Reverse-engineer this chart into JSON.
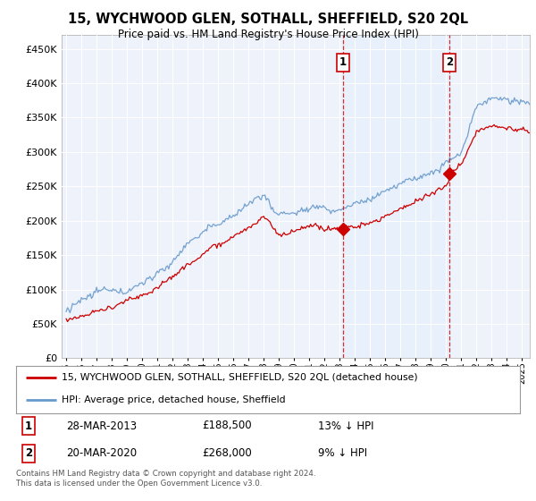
{
  "title": "15, WYCHWOOD GLEN, SOTHALL, SHEFFIELD, S20 2QL",
  "subtitle": "Price paid vs. HM Land Registry's House Price Index (HPI)",
  "ytick_values": [
    0,
    50000,
    100000,
    150000,
    200000,
    250000,
    300000,
    350000,
    400000,
    450000
  ],
  "ylim": [
    0,
    470000
  ],
  "xlim_start": 1994.7,
  "xlim_end": 2025.5,
  "marker1_x": 2013.22,
  "marker1_y": 188500,
  "marker2_x": 2020.22,
  "marker2_y": 268000,
  "annotation1": {
    "label": "1",
    "date": "28-MAR-2013",
    "price": "£188,500",
    "pct": "13% ↓ HPI"
  },
  "annotation2": {
    "label": "2",
    "date": "20-MAR-2020",
    "price": "£268,000",
    "pct": "9% ↓ HPI"
  },
  "legend1_label": "15, WYCHWOOD GLEN, SOTHALL, SHEFFIELD, S20 2QL (detached house)",
  "legend2_label": "HPI: Average price, detached house, Sheffield",
  "footer": "Contains HM Land Registry data © Crown copyright and database right 2024.\nThis data is licensed under the Open Government Licence v3.0.",
  "red_color": "#cc0000",
  "blue_color": "#6699cc",
  "shade_color": "#ddeeff",
  "dashed_vline_color": "#cc0000",
  "background_color": "#ffffff",
  "plot_bg_color": "#eef2fa"
}
